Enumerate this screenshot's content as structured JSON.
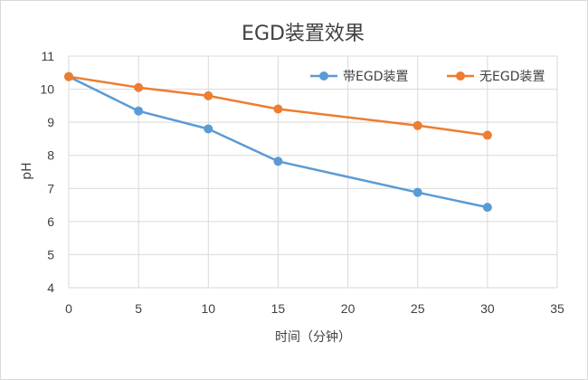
{
  "chart_data": {
    "type": "line",
    "title": "EGD装置效果",
    "xlabel": "时间（分钟）",
    "ylabel": "pH",
    "xlim": [
      0,
      35
    ],
    "ylim": [
      4,
      11
    ],
    "x_ticks": [
      0,
      5,
      10,
      15,
      20,
      25,
      30,
      35
    ],
    "y_ticks": [
      4,
      5,
      6,
      7,
      8,
      9,
      10,
      11
    ],
    "grid": true,
    "legend_position": "top-right",
    "series": [
      {
        "name": "带EGD装置",
        "color": "#5b9bd5",
        "x": [
          0,
          5,
          10,
          15,
          25,
          30
        ],
        "y": [
          10.38,
          9.34,
          8.8,
          7.82,
          6.88,
          6.43
        ]
      },
      {
        "name": "无EGD装置",
        "color": "#ed7d31",
        "x": [
          0,
          5,
          10,
          15,
          25,
          30
        ],
        "y": [
          10.38,
          10.05,
          9.8,
          9.4,
          8.9,
          8.61
        ]
      }
    ]
  }
}
